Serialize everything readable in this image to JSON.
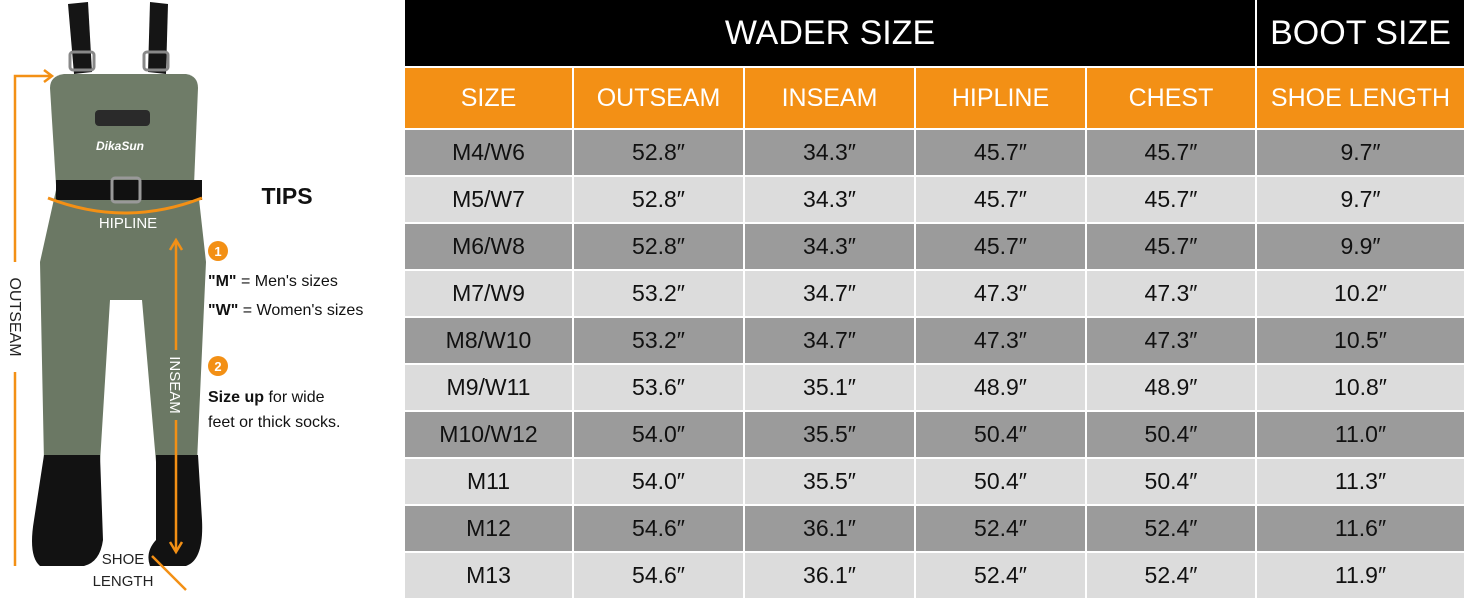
{
  "illustration": {
    "logo": "DikaSun",
    "labels": {
      "outseam": "OUTSEAM",
      "hipline": "HIPLINE",
      "inseam": "INSEAM",
      "shoe_length": [
        "SHOE",
        "LENGTH"
      ]
    }
  },
  "tips": {
    "title": "TIPS",
    "items": [
      {
        "number": "1",
        "lines": [
          {
            "key": "\"M\"",
            "text": "= Men's sizes"
          },
          {
            "key": "\"W\"",
            "text": "= Women's sizes"
          }
        ]
      },
      {
        "number": "2",
        "key": "Size up",
        "lines": [
          "for wide",
          "feet or thick socks."
        ]
      }
    ]
  },
  "table": {
    "groups": [
      "WADER SIZE",
      "BOOT SIZE"
    ],
    "columns": [
      "SIZE",
      "OUTSEAM",
      "INSEAM",
      "HIPLINE",
      "CHEST",
      "SHOE LENGTH"
    ],
    "rows": [
      [
        "M4/W6",
        "52.8″",
        "34.3″",
        "45.7″",
        "45.7″",
        "9.7″"
      ],
      [
        "M5/W7",
        "52.8″",
        "34.3″",
        "45.7″",
        "45.7″",
        "9.7″"
      ],
      [
        "M6/W8",
        "52.8″",
        "34.3″",
        "45.7″",
        "45.7″",
        "9.9″"
      ],
      [
        "M7/W9",
        "53.2″",
        "34.7″",
        "47.3″",
        "47.3″",
        "10.2″"
      ],
      [
        "M8/W10",
        "53.2″",
        "34.7″",
        "47.3″",
        "47.3″",
        "10.5″"
      ],
      [
        "M9/W11",
        "53.6″",
        "35.1″",
        "48.9″",
        "48.9″",
        "10.8″"
      ],
      [
        "M10/W12",
        "54.0″",
        "35.5″",
        "50.4″",
        "50.4″",
        "11.0″"
      ],
      [
        "M11",
        "54.0″",
        "35.5″",
        "50.4″",
        "50.4″",
        "11.3″"
      ],
      [
        "M12",
        "54.6″",
        "36.1″",
        "52.4″",
        "52.4″",
        "11.6″"
      ],
      [
        "M13",
        "54.6″",
        "36.1″",
        "52.4″",
        "52.4″",
        "11.9″"
      ]
    ]
  }
}
